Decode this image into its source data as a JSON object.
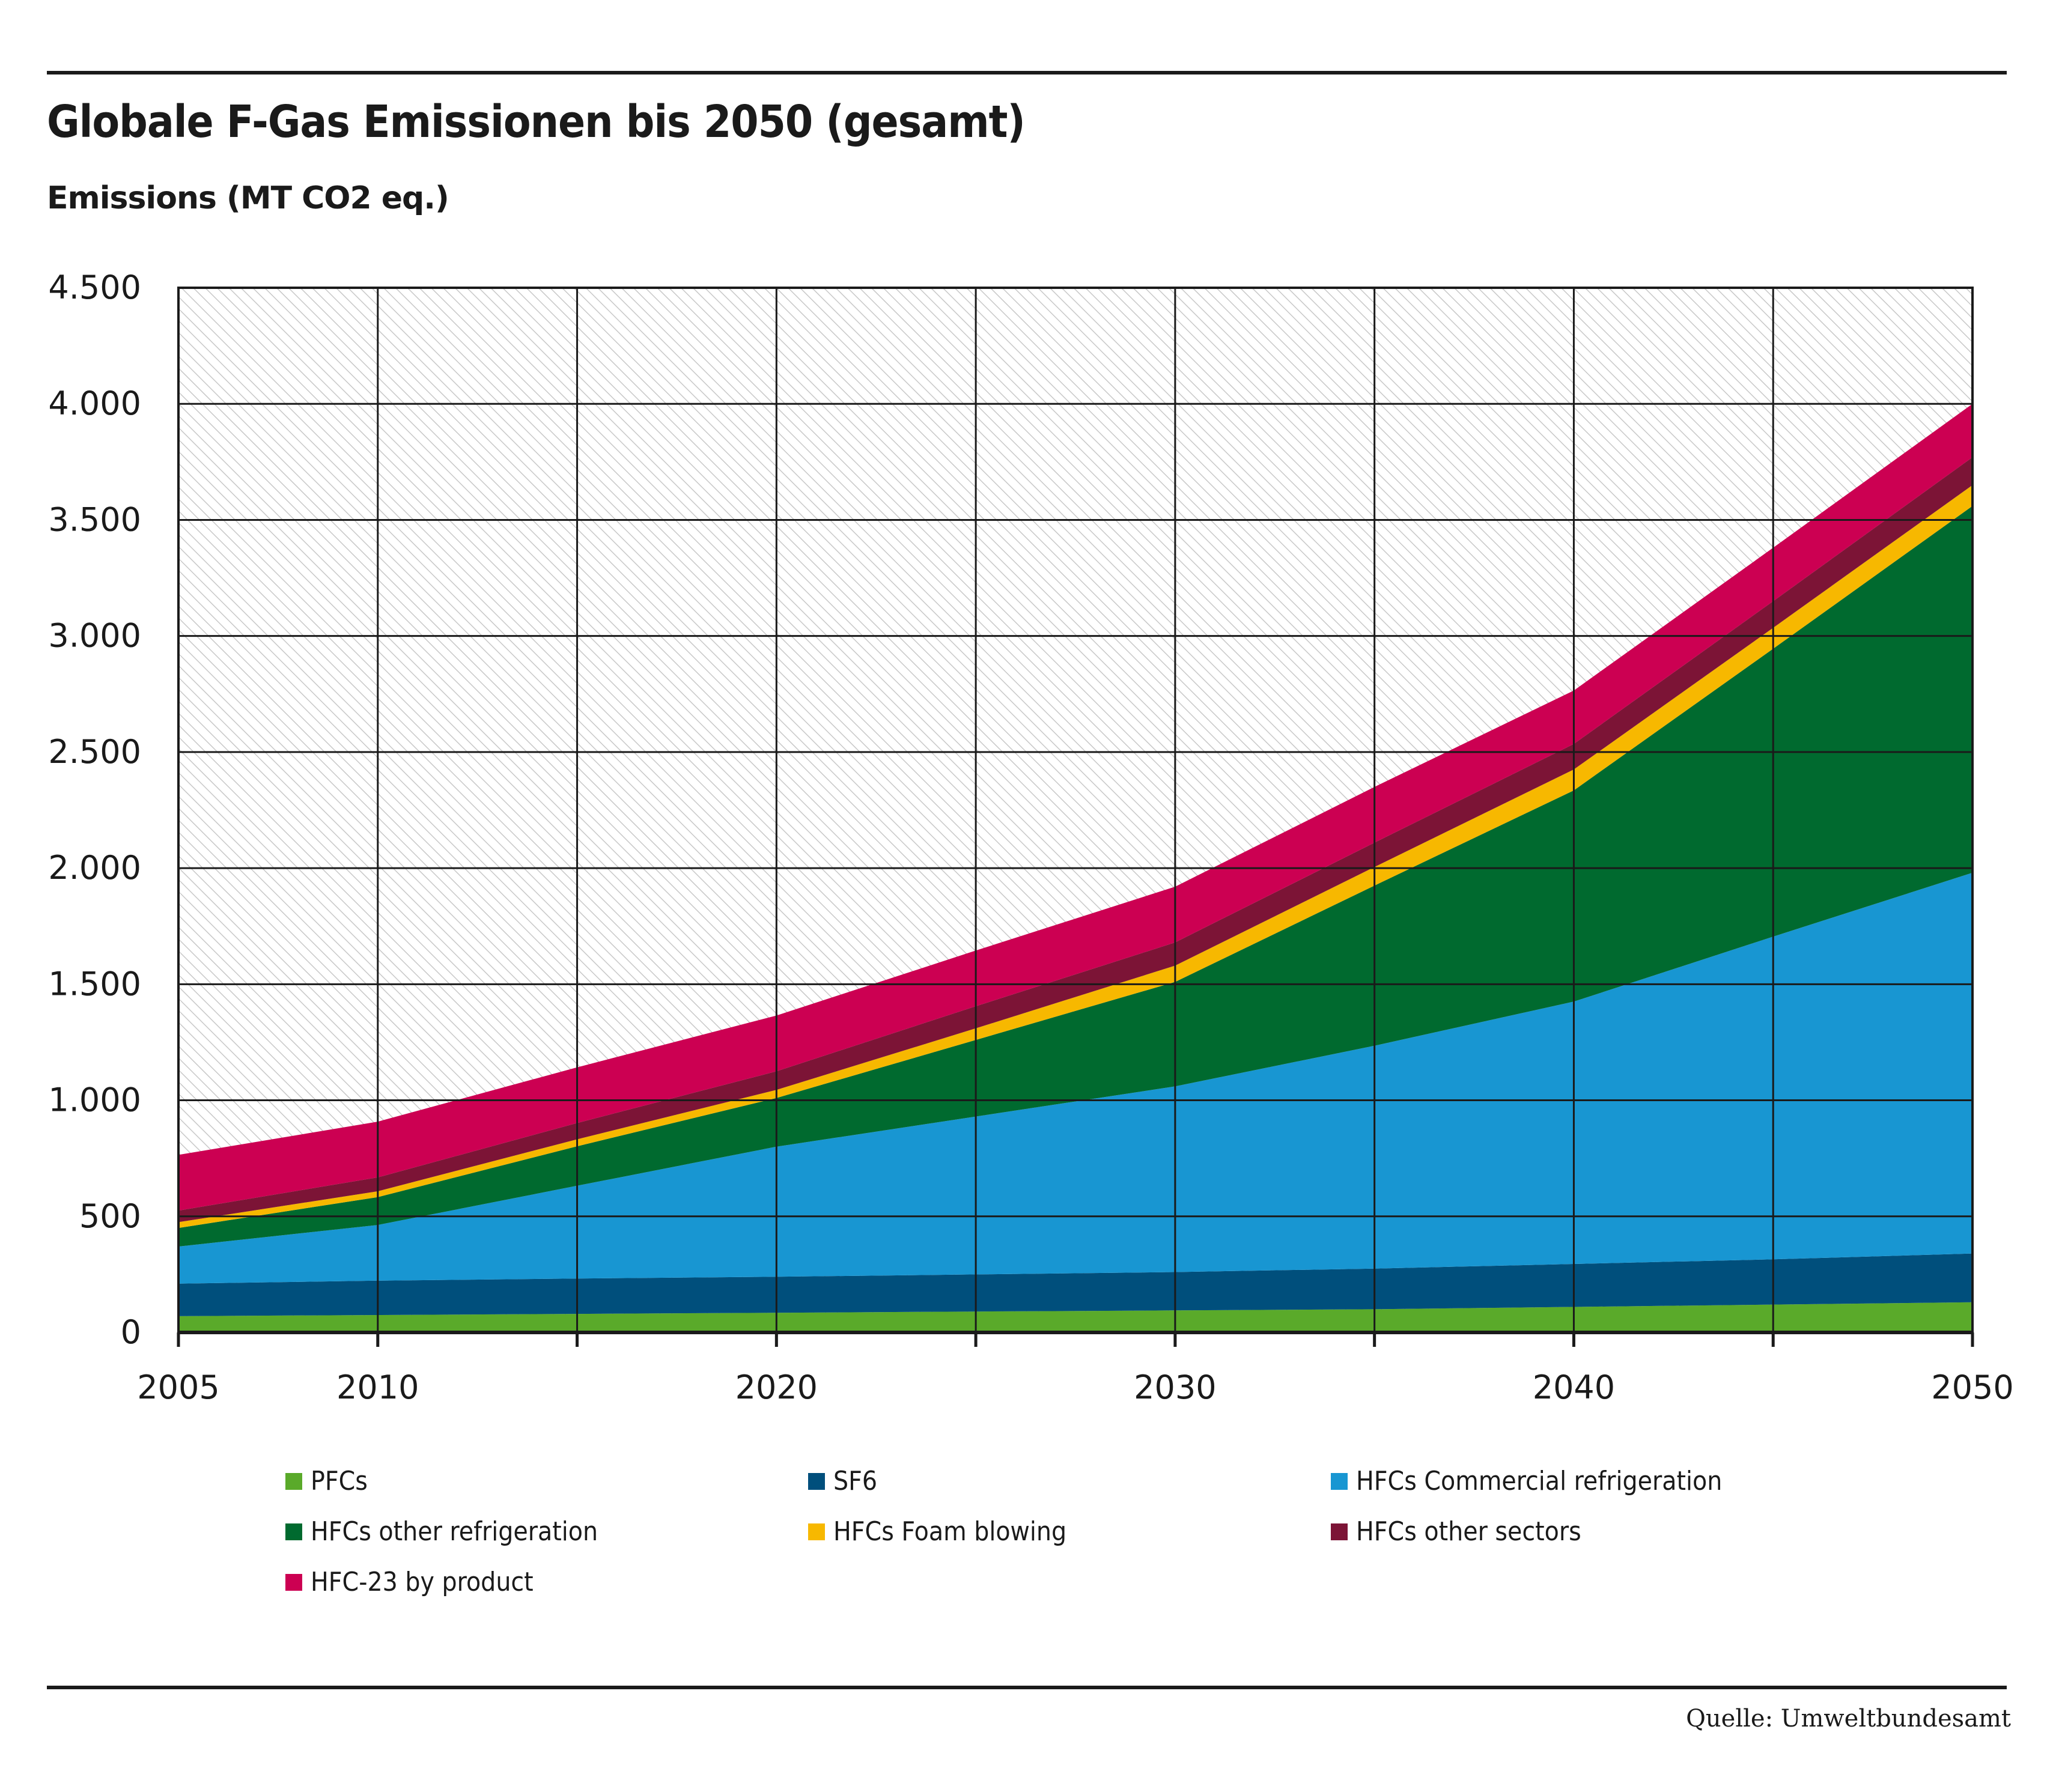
{
  "header": {
    "title": "Globale F-Gas Emissionen bis 2050 (gesamt)",
    "subtitle": "Emissions (MT CO2 eq.)"
  },
  "footer": {
    "source": "Quelle: Umweltbundesamt"
  },
  "chart_data": {
    "type": "area",
    "stacked": true,
    "title": "Globale F-Gas Emissionen bis 2050 (gesamt)",
    "ylabel": "Emissions (MT CO2 eq.)",
    "xlabel": "",
    "x": [
      2005,
      2010,
      2015,
      2020,
      2025,
      2030,
      2035,
      2040,
      2045,
      2050
    ],
    "xlim": [
      2005,
      2050
    ],
    "ylim": [
      0,
      4500
    ],
    "x_ticks": [
      2005,
      2010,
      2015,
      2020,
      2025,
      2030,
      2035,
      2040,
      2045,
      2050
    ],
    "x_tick_labels": [
      "2005",
      "2010",
      "",
      "2020",
      "",
      "2030",
      "",
      "2040",
      "",
      "2050"
    ],
    "y_ticks": [
      0,
      500,
      1000,
      1500,
      2000,
      2500,
      3000,
      3500,
      4000,
      4500
    ],
    "y_tick_labels": [
      "0",
      "500",
      "1.000",
      "1.500",
      "2.000",
      "2.500",
      "3.000",
      "3.500",
      "4.000",
      "4.500"
    ],
    "grid": true,
    "background_pattern": "diagonal-hatch",
    "legend_position": "bottom",
    "series": [
      {
        "name": "PFCs",
        "color": "#5aaa2a",
        "values": [
          70,
          75,
          80,
          85,
          90,
          95,
          100,
          110,
          120,
          130
        ]
      },
      {
        "name": "SF6",
        "color": "#004f7c",
        "values": [
          140,
          148,
          152,
          155,
          160,
          165,
          175,
          185,
          195,
          210
        ]
      },
      {
        "name": "HFCs Commercial refrigeration",
        "color": "#1896d2",
        "values": [
          160,
          240,
          400,
          560,
          680,
          800,
          960,
          1130,
          1390,
          1640
        ]
      },
      {
        "name": "HFCs other refrigeration",
        "color": "#006a2f",
        "values": [
          80,
          120,
          170,
          210,
          330,
          450,
          690,
          910,
          1240,
          1580
        ]
      },
      {
        "name": "HFCs Foam blowing",
        "color": "#f7b800",
        "values": [
          25,
          25,
          30,
          35,
          50,
          70,
          80,
          90,
          90,
          90
        ]
      },
      {
        "name": "HFCs other sectors",
        "color": "#7c1436",
        "values": [
          50,
          60,
          70,
          80,
          95,
          100,
          105,
          110,
          115,
          120
        ]
      },
      {
        "name": "HFC-23 by product",
        "color": "#cc0052",
        "values": [
          240,
          240,
          240,
          240,
          240,
          240,
          240,
          230,
          230,
          230
        ]
      }
    ]
  }
}
